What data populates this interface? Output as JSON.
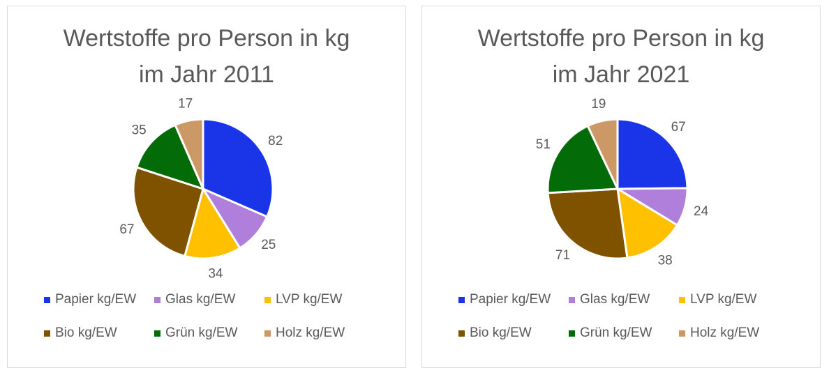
{
  "chart_data": [
    {
      "type": "pie",
      "title": "Wertstoffe pro Person in kg im Jahr 2011",
      "categories": [
        "Papier kg/EW",
        "Glas kg/EW",
        "LVP kg/EW",
        "Bio kg/EW",
        "Grün kg/EW",
        "Holz kg/EW"
      ],
      "values": [
        82,
        25,
        34,
        67,
        35,
        17
      ],
      "colors": [
        "#1a35e8",
        "#b07fdc",
        "#ffc000",
        "#7f5200",
        "#036b07",
        "#cc9966"
      ],
      "legend": "bottom"
    },
    {
      "type": "pie",
      "title": "Wertstoffe pro Person in kg im Jahr 2021",
      "categories": [
        "Papier kg/EW",
        "Glas kg/EW",
        "LVP kg/EW",
        "Bio kg/EW",
        "Grün kg/EW",
        "Holz kg/EW"
      ],
      "values": [
        67,
        24,
        38,
        71,
        51,
        19
      ],
      "colors": [
        "#1a35e8",
        "#b07fdc",
        "#ffc000",
        "#7f5200",
        "#036b07",
        "#cc9966"
      ],
      "legend": "bottom"
    }
  ]
}
